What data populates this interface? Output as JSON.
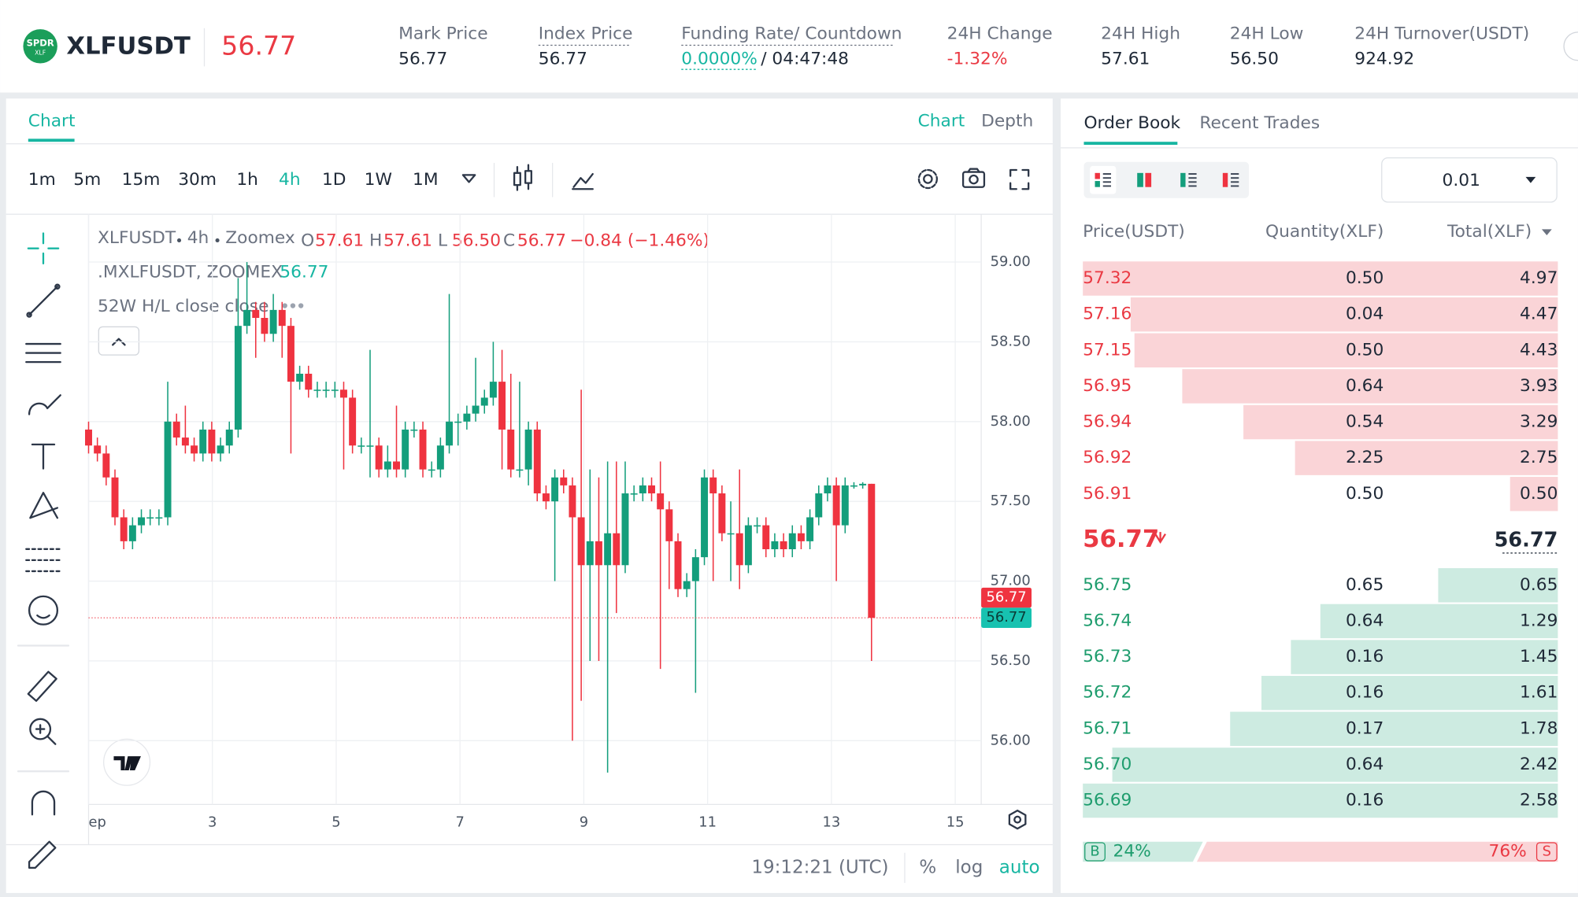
{
  "header": {
    "logo_top": "SPDR",
    "logo_bottom": "XLF",
    "symbol": "XLFUSDT",
    "last_price": "56.77",
    "stats": [
      {
        "label": "Mark Price",
        "value": "56.77"
      },
      {
        "label": "Index Price",
        "value": "56.77"
      },
      {
        "label": "Funding Rate/ Countdown",
        "value": "0.0000%",
        "countdown": "/ 04:47:48"
      },
      {
        "label": "24H Change",
        "value": "-1.32%"
      },
      {
        "label": "24H High",
        "value": "57.61"
      },
      {
        "label": "24H Low",
        "value": "56.50"
      },
      {
        "label": "24H Turnover(USDT)",
        "value": "924.92"
      }
    ]
  },
  "chart": {
    "type": "candlestick",
    "tab": "Chart",
    "view_tabs": [
      "Chart",
      "Depth"
    ],
    "intervals": [
      "1m",
      "5m",
      "15m",
      "30m",
      "1h",
      "4h",
      "1D",
      "1W",
      "1M"
    ],
    "active_interval": "4h",
    "legend": {
      "symbol": "XLFUSDT",
      "interval": "4h",
      "exchange": "Zoomex",
      "ohlc": [
        {
          "label": "O",
          "value": "57.61"
        },
        {
          "label": "H",
          "value": "57.61"
        },
        {
          "label": "L",
          "value": "56.50"
        },
        {
          "label": "C",
          "value": "56.77"
        }
      ],
      "change": "−0.84 (−1.46%)",
      "index_name": ".MXLFUSDT, ZOOMEX",
      "index_value": "56.77",
      "indicator": "52W H/L close close"
    },
    "ylim": [
      55.6,
      59.3
    ],
    "yticks": [
      {
        "value": 56,
        "label": "56.00"
      },
      {
        "value": 56.5,
        "label": "56.50"
      },
      {
        "value": 57,
        "label": "57.00"
      },
      {
        "value": 57.5,
        "label": "57.50"
      },
      {
        "value": 58,
        "label": "58.00"
      },
      {
        "value": 58.5,
        "label": "58.50"
      },
      {
        "value": 59,
        "label": "59.00"
      }
    ],
    "xlim": [
      1,
      15.42
    ],
    "xticks": [
      {
        "value": 1,
        "label": "ep"
      },
      3,
      5,
      7,
      9,
      11,
      13,
      15
    ],
    "last_price": {
      "value": 56.77,
      "label": "56.77"
    },
    "index_price_tag": "56.77",
    "candles": {
      "open": [
        57.95,
        57.85,
        57.8,
        57.65,
        57.4,
        57.25,
        57.35,
        57.4,
        57.4,
        57.4,
        58.0,
        57.9,
        57.85,
        57.8,
        57.95,
        57.8,
        57.85,
        57.95,
        58.6,
        58.7,
        58.65,
        58.55,
        58.7,
        58.6,
        58.25,
        58.3,
        58.2,
        58.2,
        58.2,
        58.2,
        58.15,
        57.85,
        57.85,
        57.85,
        57.7,
        57.75,
        57.7,
        57.95,
        57.95,
        57.7,
        57.7,
        57.85,
        58.0,
        58.0,
        58.05,
        58.1,
        58.15,
        58.25,
        57.95,
        57.7,
        57.7,
        57.95,
        57.55,
        57.5,
        57.65,
        57.6,
        57.4,
        57.1,
        57.25,
        57.1,
        57.3,
        57.1,
        57.55,
        57.55,
        57.6,
        57.55,
        57.45,
        57.25,
        56.95,
        57.0,
        57.15,
        57.65,
        57.55,
        57.3,
        57.3,
        57.1,
        57.35,
        57.35,
        57.2,
        57.25,
        57.2,
        57.3,
        57.25,
        57.4,
        57.55,
        57.6,
        57.35,
        57.6,
        57.6,
        57.61
      ],
      "high": [
        58.0,
        57.9,
        57.85,
        57.7,
        57.45,
        57.4,
        57.45,
        57.45,
        57.45,
        58.25,
        58.05,
        58.1,
        57.9,
        58.0,
        58.0,
        57.9,
        58.0,
        58.9,
        59.0,
        58.75,
        58.75,
        58.8,
        58.75,
        58.65,
        58.35,
        58.35,
        58.25,
        58.25,
        58.25,
        58.25,
        58.2,
        57.9,
        58.45,
        57.9,
        57.85,
        58.1,
        58.0,
        58.0,
        58.0,
        57.75,
        57.9,
        58.8,
        58.05,
        58.1,
        58.4,
        58.2,
        58.5,
        58.45,
        58.3,
        58.25,
        58.0,
        58.0,
        57.6,
        57.7,
        57.7,
        57.65,
        58.2,
        57.7,
        57.65,
        57.75,
        57.75,
        57.75,
        57.6,
        57.65,
        57.65,
        57.75,
        57.5,
        57.3,
        57.05,
        57.2,
        57.7,
        57.7,
        57.6,
        57.5,
        57.7,
        57.4,
        57.4,
        57.4,
        57.3,
        57.3,
        57.35,
        57.35,
        57.45,
        57.6,
        57.65,
        57.65,
        57.65,
        57.62,
        57.62,
        57.61
      ],
      "low": [
        57.8,
        57.75,
        57.6,
        57.35,
        57.2,
        57.2,
        57.3,
        57.35,
        57.35,
        57.35,
        57.85,
        57.8,
        57.75,
        57.75,
        57.75,
        57.75,
        57.8,
        57.9,
        58.55,
        58.4,
        58.5,
        58.5,
        58.4,
        57.8,
        58.2,
        58.15,
        58.15,
        58.15,
        58.15,
        57.7,
        57.8,
        57.8,
        57.65,
        57.65,
        57.65,
        57.65,
        57.65,
        57.9,
        57.65,
        57.65,
        57.65,
        57.8,
        57.85,
        57.95,
        58.0,
        58.05,
        58.1,
        57.7,
        57.65,
        57.65,
        57.6,
        57.5,
        57.45,
        57.0,
        57.55,
        56.0,
        56.25,
        56.5,
        56.5,
        55.8,
        56.8,
        57.05,
        57.5,
        57.5,
        57.5,
        56.45,
        56.95,
        56.9,
        56.9,
        56.3,
        57.1,
        57.0,
        57.25,
        57.0,
        56.95,
        57.05,
        57.3,
        57.15,
        57.15,
        57.15,
        57.15,
        57.2,
        57.2,
        57.35,
        57.5,
        57.0,
        57.3,
        57.58,
        57.58,
        56.5
      ],
      "close": [
        57.85,
        57.8,
        57.65,
        57.4,
        57.25,
        57.35,
        57.4,
        57.4,
        57.4,
        58.0,
        57.9,
        57.85,
        57.8,
        57.95,
        57.8,
        57.85,
        57.95,
        58.6,
        58.7,
        58.65,
        58.55,
        58.7,
        58.6,
        58.25,
        58.3,
        58.2,
        58.2,
        58.2,
        58.2,
        58.15,
        57.85,
        57.85,
        57.85,
        57.7,
        57.75,
        57.7,
        57.95,
        57.95,
        57.7,
        57.7,
        57.85,
        58.0,
        58.0,
        58.05,
        58.1,
        58.15,
        58.25,
        57.95,
        57.7,
        57.7,
        57.95,
        57.55,
        57.5,
        57.65,
        57.6,
        57.4,
        57.1,
        57.25,
        57.1,
        57.3,
        57.1,
        57.55,
        57.55,
        57.6,
        57.55,
        57.45,
        57.25,
        56.95,
        57.0,
        57.15,
        57.65,
        57.55,
        57.3,
        57.3,
        57.1,
        57.35,
        57.35,
        57.2,
        57.25,
        57.2,
        57.3,
        57.25,
        57.4,
        57.55,
        57.6,
        57.35,
        57.6,
        57.6,
        57.61,
        56.77
      ]
    },
    "up_color": "#149e7c",
    "down_color": "#ef3340",
    "footer": {
      "time": "19:12:21 (UTC)",
      "percent": "%",
      "log": "log",
      "auto": "auto"
    }
  },
  "order_book": {
    "tabs": [
      "Order Book",
      "Recent Trades"
    ],
    "precision": "0.01",
    "columns": [
      "Price(USDT)",
      "Quantity(XLF)",
      "Total(XLF)"
    ],
    "asks": [
      {
        "price": "57.32",
        "quantity": "0.50",
        "total": 4.97,
        "total_label": "4.97"
      },
      {
        "price": "57.16",
        "quantity": "0.04",
        "total": 4.47,
        "total_label": "4.47"
      },
      {
        "price": "57.15",
        "quantity": "0.50",
        "total": 4.43,
        "total_label": "4.43"
      },
      {
        "price": "56.95",
        "quantity": "0.64",
        "total": 3.93,
        "total_label": "3.93"
      },
      {
        "price": "56.94",
        "quantity": "0.54",
        "total": 3.29,
        "total_label": "3.29"
      },
      {
        "price": "56.92",
        "quantity": "2.25",
        "total": 2.75,
        "total_label": "2.75"
      },
      {
        "price": "56.91",
        "quantity": "0.50",
        "total": 0.5,
        "total_label": "0.50"
      }
    ],
    "mid_price": "56.77",
    "mid_mark": "56.77",
    "bids": [
      {
        "price": "56.75",
        "quantity": "0.65",
        "total": 0.65,
        "total_label": "0.65"
      },
      {
        "price": "56.74",
        "quantity": "0.64",
        "total": 1.29,
        "total_label": "1.29"
      },
      {
        "price": "56.73",
        "quantity": "0.16",
        "total": 1.45,
        "total_label": "1.45"
      },
      {
        "price": "56.72",
        "quantity": "0.16",
        "total": 1.61,
        "total_label": "1.61"
      },
      {
        "price": "56.71",
        "quantity": "0.17",
        "total": 1.78,
        "total_label": "1.78"
      },
      {
        "price": "56.70",
        "quantity": "0.64",
        "total": 2.42,
        "total_label": "2.42"
      },
      {
        "price": "56.69",
        "quantity": "0.16",
        "total": 2.58,
        "total_label": "2.58"
      }
    ],
    "buy_letter": "B",
    "sell_letter": "S",
    "buy": {
      "value": 24,
      "label": "24%"
    },
    "sell": {
      "value": 76,
      "label": "76%"
    }
  }
}
